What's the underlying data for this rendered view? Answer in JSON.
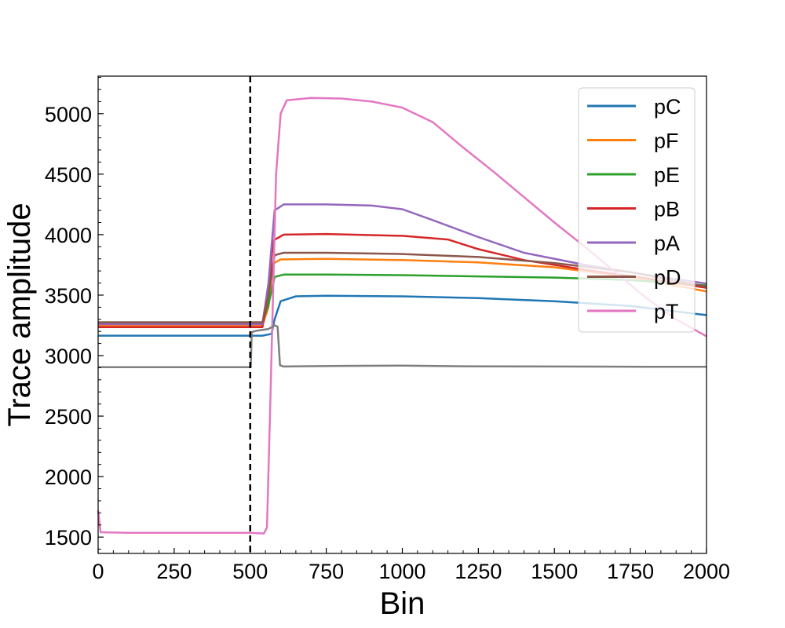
{
  "chart_data": {
    "type": "line",
    "title": "",
    "xlabel": "Bin",
    "ylabel": "Trace amplitude",
    "xlim": [
      0,
      2000
    ],
    "ylim": [
      1365,
      5310
    ],
    "x_ticks": [
      0,
      250,
      500,
      750,
      1000,
      1250,
      1500,
      1750,
      2000
    ],
    "y_ticks": [
      1500,
      2000,
      2500,
      3000,
      3500,
      4000,
      4500,
      5000
    ],
    "grid": false,
    "legend": "top-right",
    "vline": {
      "x": 500,
      "color": "#000000",
      "style": "dashed"
    },
    "series": [
      {
        "name": "pC",
        "color": "#1f77b4",
        "points": [
          [
            0,
            3165
          ],
          [
            540,
            3165
          ],
          [
            570,
            3180
          ],
          [
            580,
            3300
          ],
          [
            600,
            3450
          ],
          [
            650,
            3490
          ],
          [
            750,
            3495
          ],
          [
            1000,
            3490
          ],
          [
            1250,
            3475
          ],
          [
            1500,
            3450
          ],
          [
            1750,
            3410
          ],
          [
            2000,
            3335
          ]
        ]
      },
      {
        "name": "pF",
        "color": "#ff7f0e",
        "points": [
          [
            0,
            3250
          ],
          [
            540,
            3250
          ],
          [
            560,
            3400
          ],
          [
            575,
            3760
          ],
          [
            600,
            3795
          ],
          [
            750,
            3800
          ],
          [
            1000,
            3790
          ],
          [
            1250,
            3770
          ],
          [
            1500,
            3730
          ],
          [
            1750,
            3650
          ],
          [
            2000,
            3530
          ]
        ]
      },
      {
        "name": "pE",
        "color": "#2ca02c",
        "points": [
          [
            0,
            3275
          ],
          [
            540,
            3275
          ],
          [
            560,
            3420
          ],
          [
            580,
            3650
          ],
          [
            610,
            3670
          ],
          [
            750,
            3670
          ],
          [
            1000,
            3665
          ],
          [
            1250,
            3655
          ],
          [
            1500,
            3645
          ],
          [
            1750,
            3625
          ],
          [
            2000,
            3580
          ]
        ]
      },
      {
        "name": "pB",
        "color": "#d62728",
        "points": [
          [
            0,
            3235
          ],
          [
            540,
            3235
          ],
          [
            560,
            3500
          ],
          [
            575,
            3950
          ],
          [
            610,
            4000
          ],
          [
            750,
            4005
          ],
          [
            1000,
            3990
          ],
          [
            1150,
            3960
          ],
          [
            1250,
            3880
          ],
          [
            1400,
            3790
          ],
          [
            1600,
            3710
          ],
          [
            1800,
            3640
          ],
          [
            2000,
            3560
          ]
        ]
      },
      {
        "name": "pA",
        "color": "#9467bd",
        "points": [
          [
            0,
            3260
          ],
          [
            540,
            3260
          ],
          [
            560,
            3600
          ],
          [
            580,
            4200
          ],
          [
            610,
            4250
          ],
          [
            750,
            4250
          ],
          [
            900,
            4240
          ],
          [
            1000,
            4210
          ],
          [
            1100,
            4120
          ],
          [
            1250,
            3980
          ],
          [
            1400,
            3850
          ],
          [
            1600,
            3750
          ],
          [
            1800,
            3670
          ],
          [
            2000,
            3595
          ]
        ]
      },
      {
        "name": "pD",
        "color": "#8c564b",
        "points": [
          [
            0,
            3275
          ],
          [
            540,
            3275
          ],
          [
            560,
            3500
          ],
          [
            580,
            3830
          ],
          [
            610,
            3850
          ],
          [
            750,
            3850
          ],
          [
            1000,
            3840
          ],
          [
            1250,
            3815
          ],
          [
            1500,
            3765
          ],
          [
            1750,
            3690
          ],
          [
            2000,
            3570
          ]
        ]
      },
      {
        "name": "pT",
        "color": "#e377c2",
        "points": [
          [
            0,
            1720
          ],
          [
            8,
            1540
          ],
          [
            100,
            1535
          ],
          [
            300,
            1535
          ],
          [
            500,
            1535
          ],
          [
            545,
            1530
          ],
          [
            555,
            1580
          ],
          [
            565,
            2500
          ],
          [
            575,
            3500
          ],
          [
            585,
            4500
          ],
          [
            600,
            5000
          ],
          [
            620,
            5110
          ],
          [
            700,
            5130
          ],
          [
            800,
            5125
          ],
          [
            900,
            5100
          ],
          [
            1000,
            5050
          ],
          [
            1100,
            4930
          ],
          [
            1200,
            4720
          ],
          [
            1300,
            4520
          ],
          [
            1400,
            4310
          ],
          [
            1500,
            4100
          ],
          [
            1600,
            3900
          ],
          [
            1700,
            3690
          ],
          [
            1800,
            3480
          ],
          [
            1900,
            3300
          ],
          [
            2000,
            3160
          ]
        ]
      },
      {
        "color": "#7f7f7f",
        "points": [
          [
            0,
            2905
          ],
          [
            495,
            2905
          ],
          [
            502,
            2905
          ],
          [
            505,
            3195
          ],
          [
            520,
            3205
          ],
          [
            560,
            3220
          ],
          [
            580,
            3250
          ],
          [
            590,
            3240
          ],
          [
            598,
            2920
          ],
          [
            610,
            2910
          ],
          [
            800,
            2915
          ],
          [
            1000,
            2918
          ],
          [
            1200,
            2912
          ],
          [
            1500,
            2910
          ],
          [
            1800,
            2908
          ],
          [
            2000,
            2908
          ]
        ]
      }
    ]
  }
}
